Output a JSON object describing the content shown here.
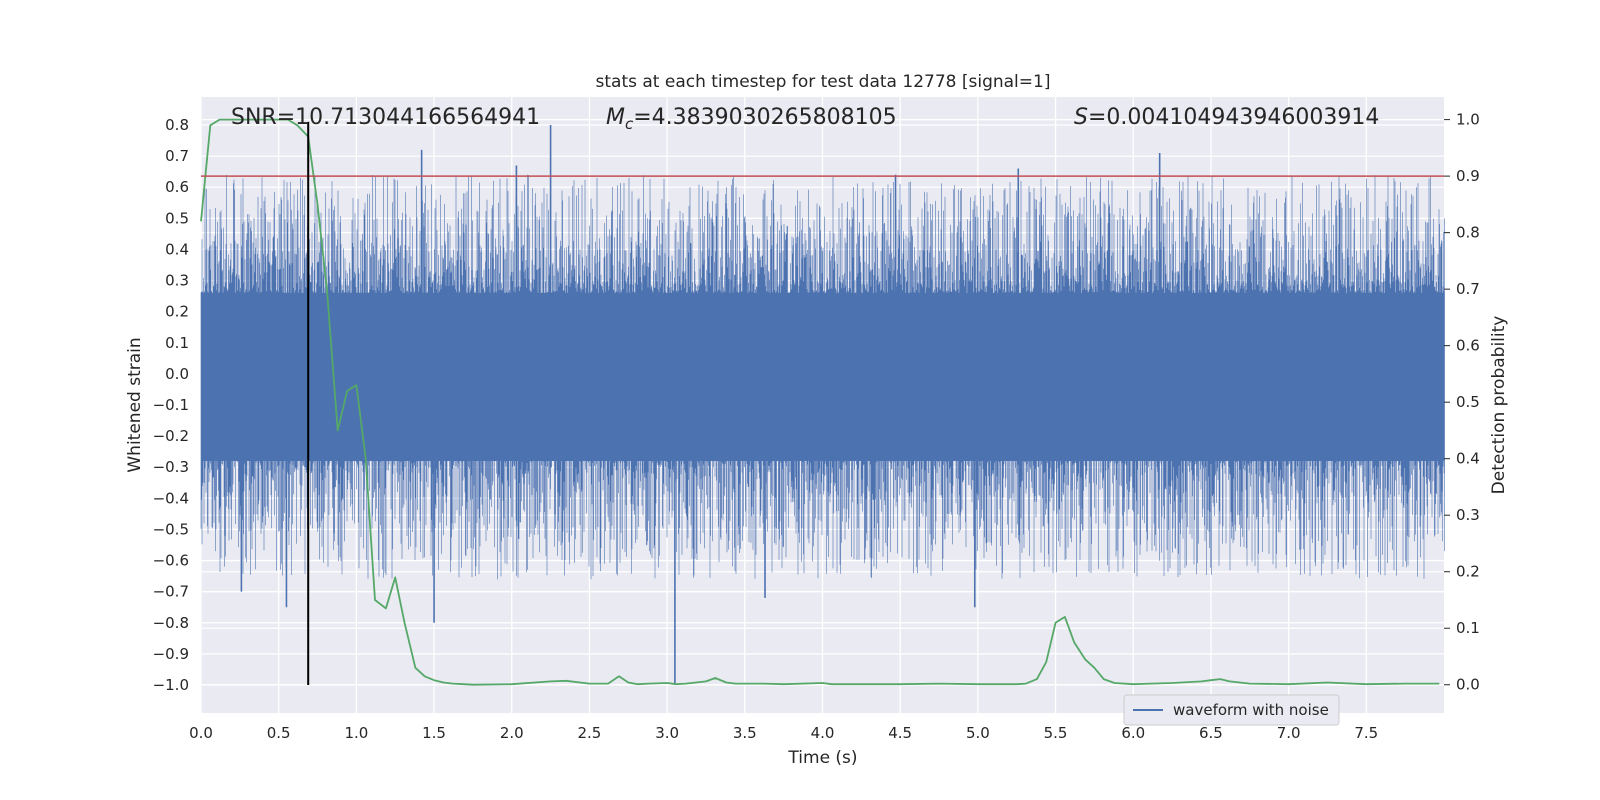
{
  "chart_data": {
    "type": "line",
    "title": "stats at each timestep for test data 12778 [signal=1]",
    "xlabel": "Time (s)",
    "ylabel": "Whitened strain",
    "y2label": "Detection probability",
    "xlim": [
      0.0,
      8.0
    ],
    "ylim": [
      -1.09,
      0.89
    ],
    "y2lim": [
      -0.05,
      1.04
    ],
    "xticks": [
      "0.0",
      "0.5",
      "1.0",
      "1.5",
      "2.0",
      "2.5",
      "3.0",
      "3.5",
      "4.0",
      "4.5",
      "5.0",
      "5.5",
      "6.0",
      "6.5",
      "7.0",
      "7.5"
    ],
    "yticks": [
      "0.8",
      "0.7",
      "0.6",
      "0.5",
      "0.4",
      "0.3",
      "0.2",
      "0.1",
      "0.0",
      "−0.1",
      "−0.2",
      "−0.3",
      "−0.4",
      "−0.5",
      "−0.6",
      "−0.7",
      "−0.8",
      "−0.9",
      "−1.0"
    ],
    "y2ticks": [
      "1.0",
      "0.9",
      "0.8",
      "0.7",
      "0.6",
      "0.5",
      "0.4",
      "0.3",
      "0.2",
      "0.1",
      "0.0"
    ],
    "annotations": {
      "snr": "SNR=10.713044166564941",
      "mc_symbol": "M",
      "mc_sub": "c",
      "mc_value": "=4.3839030265808105",
      "s_symbol": "S",
      "s_value": "=0.004104943946003914"
    },
    "legend": {
      "label": "waveform with noise",
      "position": "lower-right"
    },
    "grid": true,
    "colors": {
      "background": "#eaeaf2",
      "grid": "#ffffff",
      "waveform": "#4c72b0",
      "probability": "#55a868",
      "threshold": "#c44e52",
      "marker": "#000000"
    },
    "series": [
      {
        "name": "waveform with noise",
        "axis": "left",
        "noise_envelope": 0.26,
        "sample_rate_hz": 4096,
        "notable_peaks": [
          {
            "x": 2.25,
            "y": 0.8
          },
          {
            "x": 1.42,
            "y": 0.72
          },
          {
            "x": 2.03,
            "y": 0.67
          },
          {
            "x": 6.17,
            "y": 0.71
          },
          {
            "x": 4.47,
            "y": 0.64
          },
          {
            "x": 5.26,
            "y": 0.66
          },
          {
            "x": 3.05,
            "y": -1.0
          },
          {
            "x": 1.5,
            "y": -0.8
          },
          {
            "x": 0.55,
            "y": -0.75
          },
          {
            "x": 4.98,
            "y": -0.75
          },
          {
            "x": 0.26,
            "y": -0.7
          },
          {
            "x": 3.63,
            "y": -0.72
          }
        ]
      },
      {
        "name": "",
        "axis": "right",
        "x": [
          0.0,
          0.06,
          0.12,
          0.19,
          0.25,
          0.31,
          0.38,
          0.44,
          0.5,
          0.56,
          0.62,
          0.69,
          0.75,
          0.81,
          0.88,
          0.94,
          1.0,
          1.06,
          1.12,
          1.19,
          1.25,
          1.31,
          1.38,
          1.44,
          1.5,
          1.56,
          1.62,
          1.69,
          1.75,
          2.0,
          2.25,
          2.35,
          2.5,
          2.62,
          2.69,
          2.75,
          2.81,
          2.88,
          3.0,
          3.06,
          3.12,
          3.25,
          3.31,
          3.38,
          3.44,
          3.56,
          3.62,
          3.75,
          4.0,
          4.06,
          4.25,
          4.5,
          4.75,
          5.0,
          5.25,
          5.31,
          5.38,
          5.44,
          5.5,
          5.56,
          5.62,
          5.69,
          5.75,
          5.81,
          5.88,
          6.0,
          6.25,
          6.44,
          6.5,
          6.56,
          6.62,
          6.75,
          7.0,
          7.25,
          7.5,
          7.75,
          7.97
        ],
        "y": [
          0.82,
          0.99,
          1.0,
          1.0,
          1.0,
          1.0,
          1.0,
          1.0,
          1.0,
          1.0,
          0.99,
          0.97,
          0.85,
          0.7,
          0.45,
          0.52,
          0.53,
          0.4,
          0.15,
          0.135,
          0.19,
          0.11,
          0.03,
          0.015,
          0.008,
          0.004,
          0.002,
          0.001,
          0.0,
          0.001,
          0.006,
          0.007,
          0.002,
          0.002,
          0.015,
          0.004,
          0.001,
          0.002,
          0.003,
          0.001,
          0.002,
          0.006,
          0.012,
          0.004,
          0.002,
          0.002,
          0.002,
          0.001,
          0.003,
          0.001,
          0.001,
          0.001,
          0.002,
          0.001,
          0.001,
          0.002,
          0.01,
          0.04,
          0.11,
          0.12,
          0.075,
          0.045,
          0.03,
          0.01,
          0.003,
          0.001,
          0.003,
          0.006,
          0.008,
          0.01,
          0.006,
          0.002,
          0.001,
          0.004,
          0.001,
          0.002,
          0.002
        ]
      }
    ],
    "threshold": {
      "axis": "right",
      "value": 0.9
    },
    "vertical_marker": {
      "x": 0.69,
      "y_from": -1.0,
      "y_to": 0.81
    }
  }
}
